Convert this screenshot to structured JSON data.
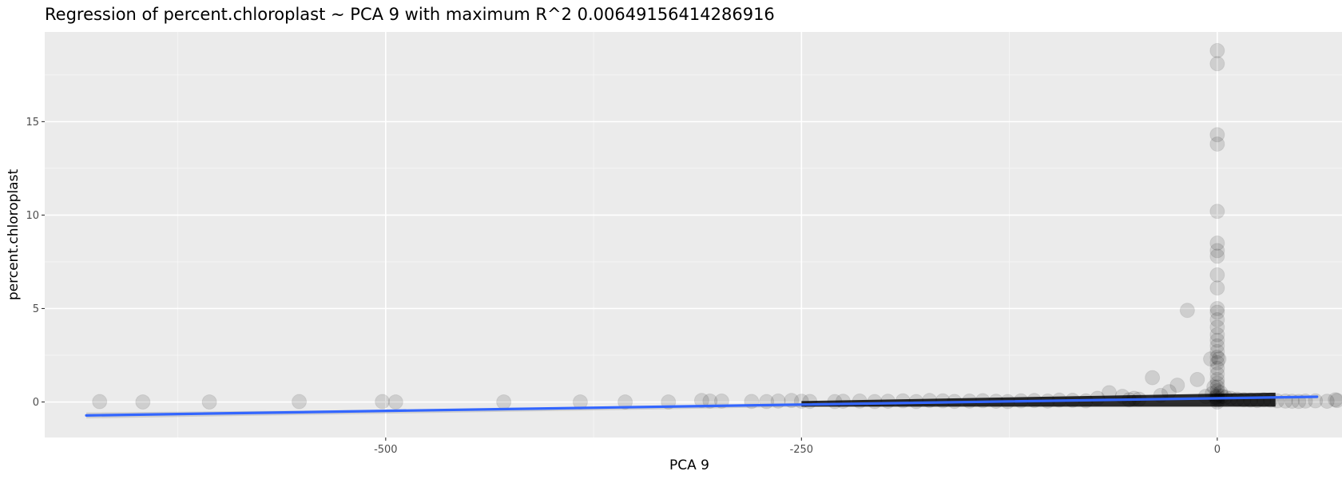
{
  "chart_data": {
    "type": "scatter",
    "title": "Regression of percent.chloroplast ~ PCA 9 with maximum R^2 0.00649156414286916",
    "xlabel": "PCA 9",
    "ylabel": "percent.chloroplast",
    "xlim": [
      -705,
      75
    ],
    "ylim": [
      -1.9,
      19.8
    ],
    "x_ticks": [
      -500,
      -250,
      0
    ],
    "x_tick_labels": [
      "-500",
      "-250",
      "0"
    ],
    "x_minor_ticks": [
      -625,
      -375,
      -125
    ],
    "y_ticks": [
      0,
      5,
      10,
      15
    ],
    "y_tick_labels": [
      "0",
      "5",
      "10",
      "15"
    ],
    "y_minor_ticks": [
      2.5,
      7.5,
      12.5,
      17.5
    ],
    "grid": true,
    "legend": "none",
    "colors": {
      "panel_background": "#ebebeb",
      "grid_major": "#ffffff",
      "point": "#000000",
      "regression_line": "#3366ff",
      "confidence_band": "#999999"
    },
    "points_x": [
      -672,
      -646,
      -606,
      -552,
      -502,
      -494,
      -429,
      -383,
      -356,
      -330,
      -310,
      -305,
      -298,
      -280,
      -271,
      -264,
      -256,
      -250,
      -245,
      -230,
      -225,
      -215,
      -206,
      -198,
      -189,
      -181,
      -173,
      -165,
      -158,
      -149,
      -141,
      -133,
      -126,
      -118,
      -110,
      -102,
      -95,
      -87,
      -79,
      -72,
      -65,
      -57,
      -53,
      -50,
      -47,
      -39,
      -34,
      -29,
      -24,
      -18,
      -12,
      -7,
      -4,
      -3,
      -2,
      -1,
      0,
      0,
      0,
      0,
      0,
      0,
      0,
      0,
      0,
      0,
      0,
      0,
      0,
      0,
      0,
      0,
      0,
      0,
      0,
      0,
      0,
      0,
      0,
      0,
      0,
      0,
      0,
      0,
      0,
      0,
      0,
      1,
      2,
      3,
      5,
      8,
      12,
      16,
      20,
      24,
      28,
      32,
      36,
      41,
      45,
      49,
      53,
      59,
      66,
      71,
      72
    ],
    "points_y": [
      0.02,
      0.0,
      0.0,
      0.02,
      0.02,
      0.0,
      0.0,
      0.0,
      0.0,
      0.0,
      0.08,
      0.05,
      0.05,
      0.03,
      0.02,
      0.05,
      0.08,
      0.04,
      0.03,
      0.02,
      0.04,
      0.05,
      0.02,
      0.04,
      0.06,
      0.02,
      0.08,
      0.06,
      0.03,
      0.05,
      0.07,
      0.04,
      0.02,
      0.06,
      0.08,
      0.05,
      0.1,
      0.09,
      0.06,
      0.2,
      0.5,
      0.3,
      0.12,
      0.2,
      0.15,
      1.3,
      0.35,
      0.55,
      0.9,
      4.9,
      1.2,
      0.3,
      2.3,
      0.45,
      0.8,
      0.25,
      18.8,
      18.1,
      14.3,
      13.8,
      10.2,
      8.5,
      8.1,
      7.8,
      6.8,
      6.1,
      5.0,
      4.8,
      4.4,
      4.0,
      3.6,
      3.3,
      3.0,
      2.7,
      2.4,
      2.1,
      1.8,
      1.5,
      1.2,
      1.0,
      0.8,
      0.6,
      0.4,
      0.3,
      0.2,
      0.1,
      0.0,
      2.3,
      0.5,
      0.3,
      0.25,
      0.2,
      0.15,
      0.12,
      0.1,
      0.08,
      0.12,
      0.1,
      0.06,
      0.05,
      0.04,
      0.03,
      0.05,
      0.06,
      0.04,
      0.12,
      0.08
    ],
    "dense_band": {
      "x_from": -250,
      "x_to": 35,
      "y_bottom": -0.25,
      "y_top_start": 0.05,
      "y_top_end": 0.5
    },
    "regression_line": {
      "x": [
        -680,
        60
      ],
      "y": [
        -0.72,
        0.28
      ]
    },
    "confidence_band": {
      "x": [
        -680,
        -340,
        60
      ],
      "lower": [
        -0.88,
        -0.4,
        0.22
      ],
      "upper": [
        -0.56,
        -0.3,
        0.34
      ]
    }
  }
}
